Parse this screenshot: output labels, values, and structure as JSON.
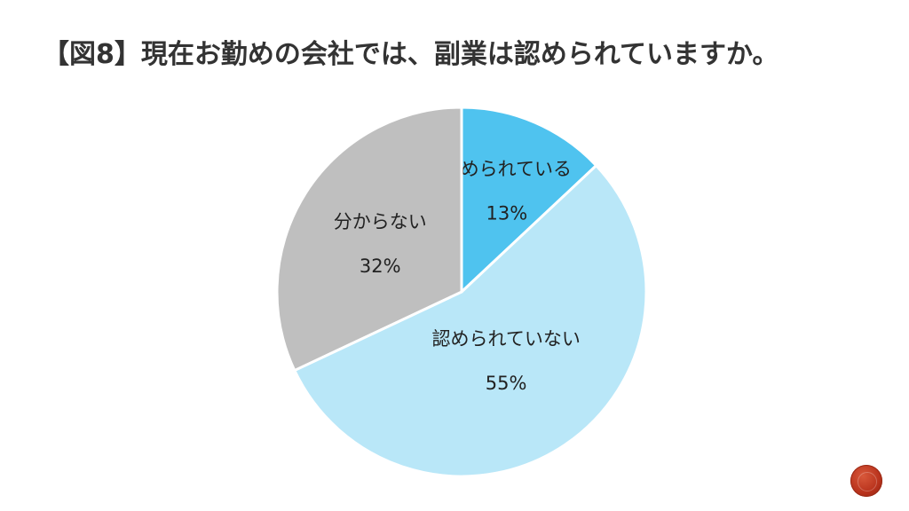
{
  "title": "【図8】現在お勤めの会社では、副業は認められていますか。",
  "chart_data": {
    "type": "pie",
    "title": "【図8】現在お勤めの会社では、副業は認められていますか。",
    "start_angle_deg": 0,
    "direction": "clockwise",
    "slices": [
      {
        "name": "認められている",
        "value": 13,
        "label": "13%",
        "color": "#4fc3ef"
      },
      {
        "name": "認められていない",
        "value": 55,
        "label": "55%",
        "color": "#b9e7f8"
      },
      {
        "name": "分からない",
        "value": 32,
        "label": "32%",
        "color": "#bfbfbf"
      }
    ]
  }
}
